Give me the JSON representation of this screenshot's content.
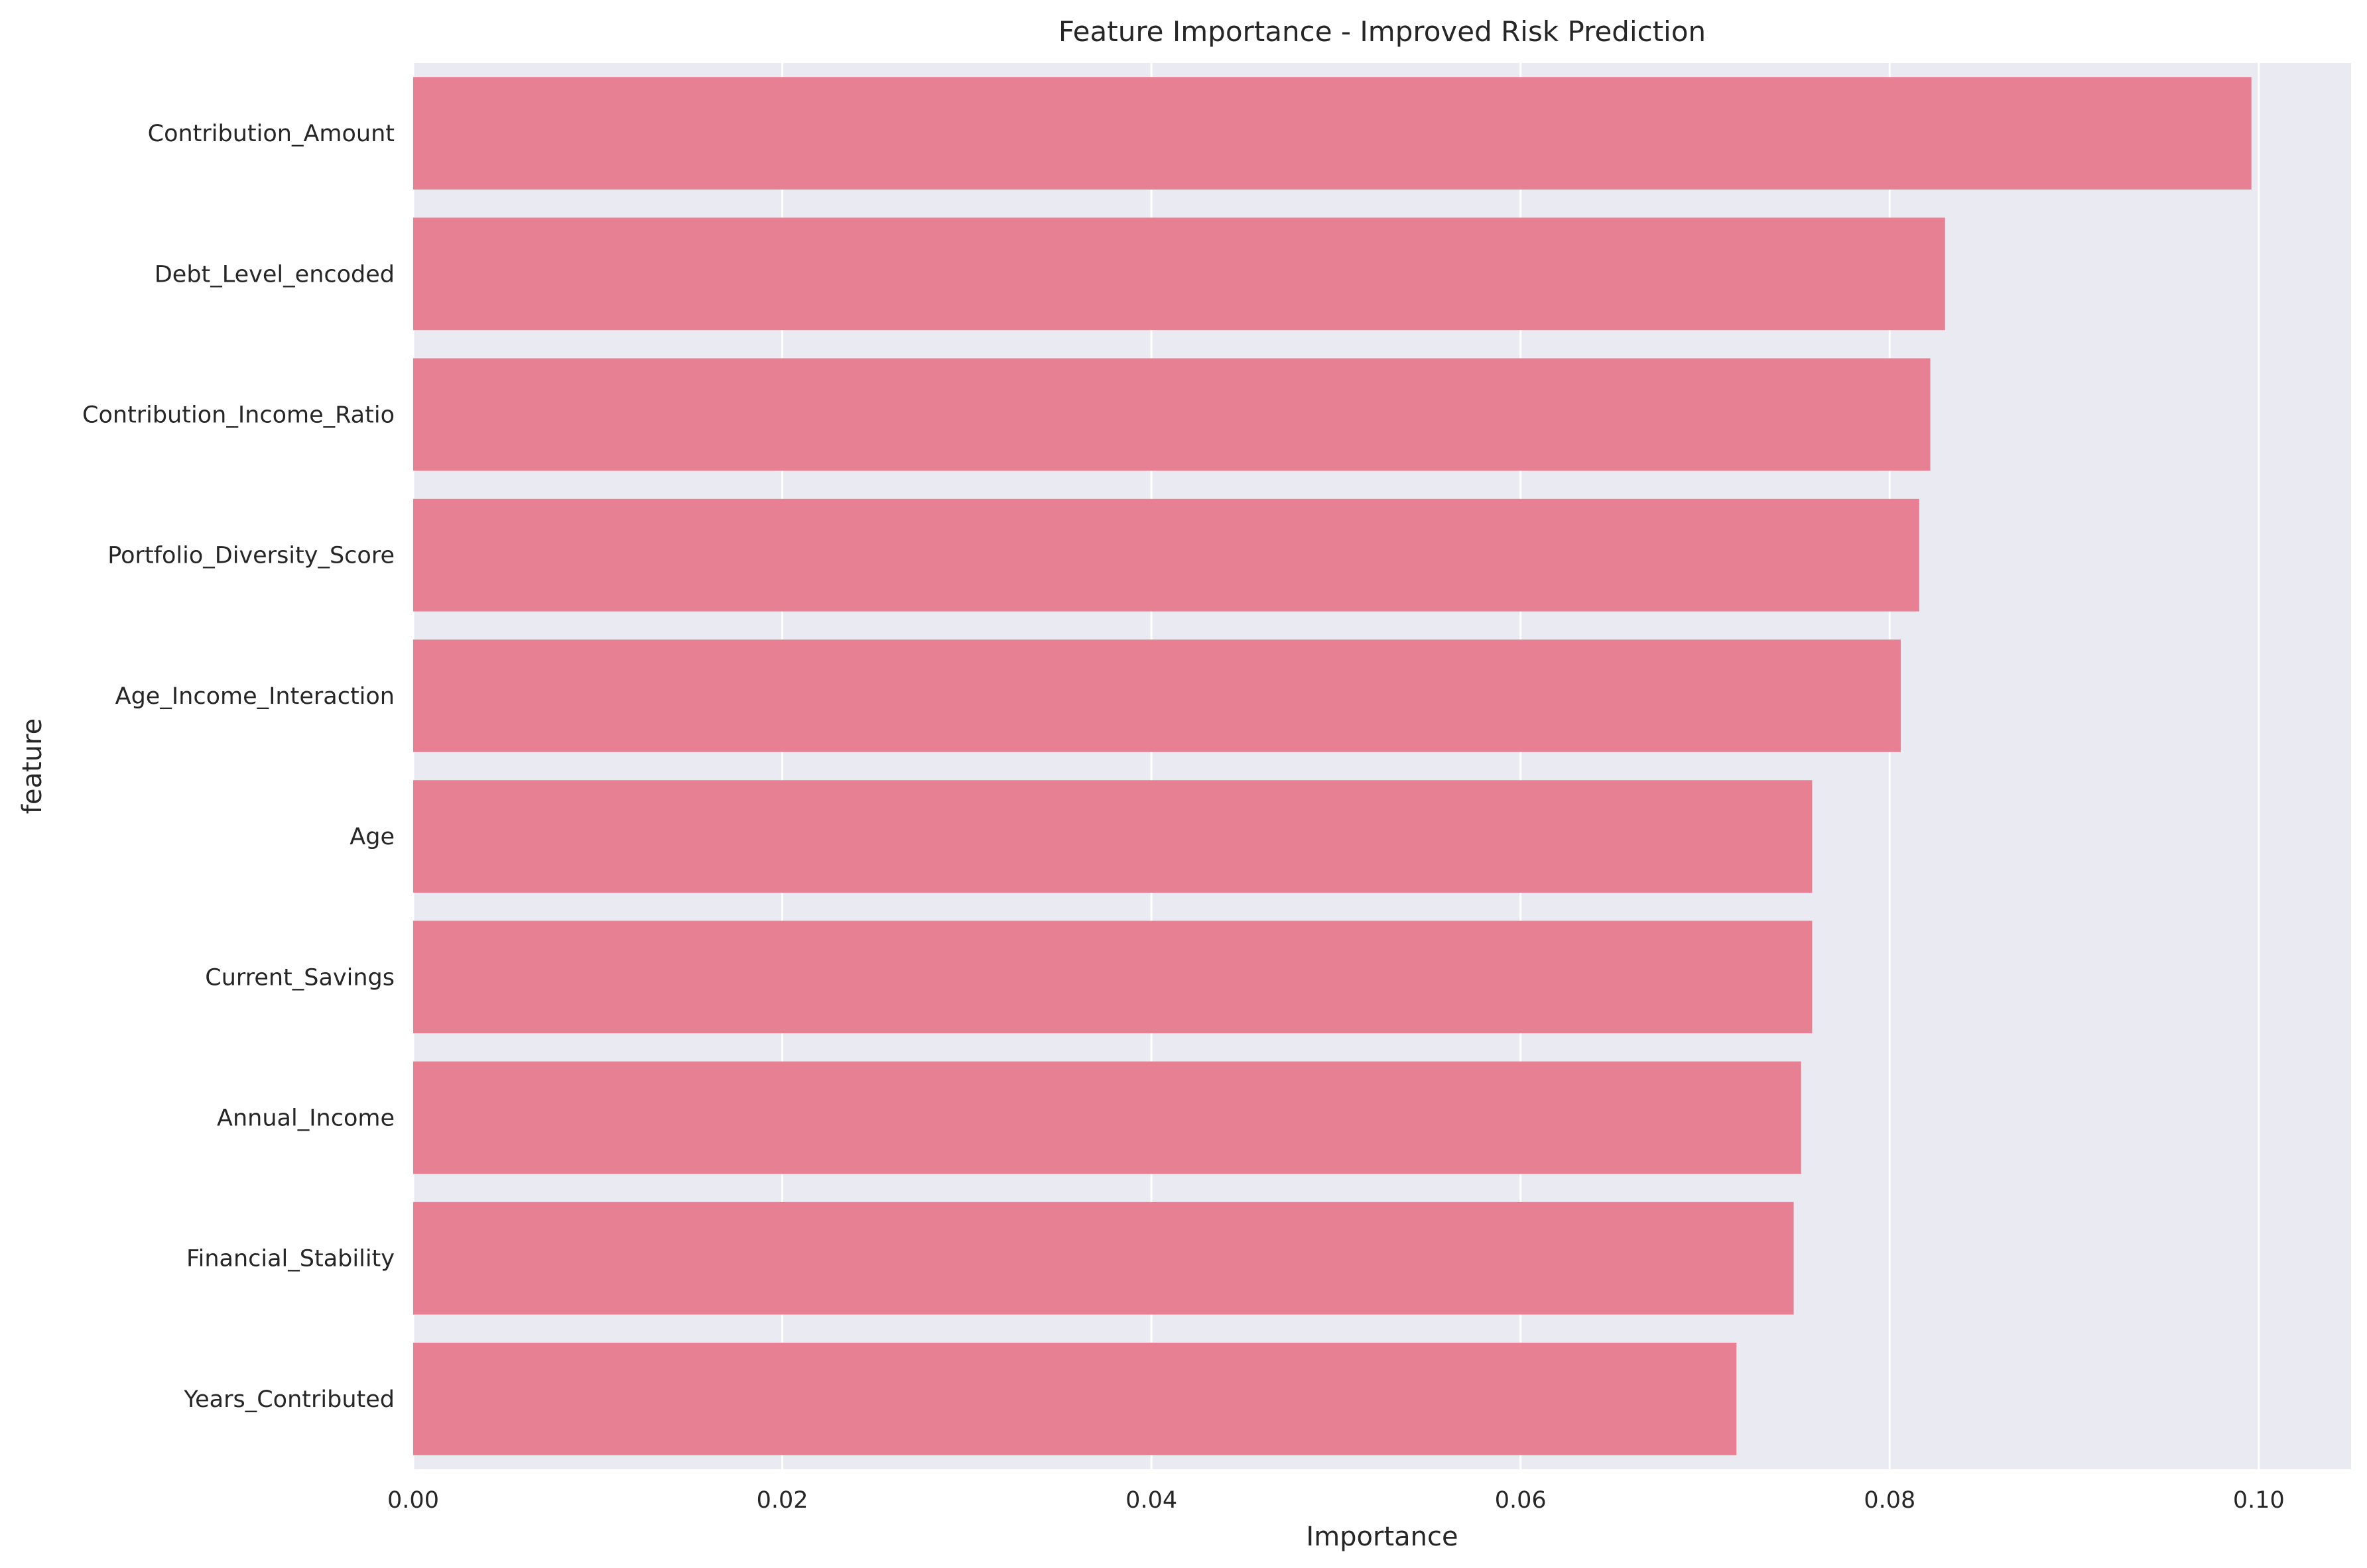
{
  "chart_data": {
    "type": "bar",
    "orientation": "horizontal",
    "title": "Feature Importance - Improved Risk Prediction",
    "xlabel": "Importance",
    "ylabel": "feature",
    "xlim": [
      0,
      0.105
    ],
    "x_ticks": [
      "0.00",
      "0.02",
      "0.04",
      "0.06",
      "0.08",
      "0.10"
    ],
    "x_tick_values": [
      0,
      0.02,
      0.04,
      0.06,
      0.08,
      0.1
    ],
    "grid": true,
    "bar_color": "#e78092",
    "background_color": "#eaeaf2",
    "categories": [
      "Contribution_Amount",
      "Debt_Level_encoded",
      "Contribution_Income_Ratio",
      "Portfolio_Diversity_Score",
      "Age_Income_Interaction",
      "Age",
      "Current_Savings",
      "Annual_Income",
      "Financial_Stability",
      "Years_Contributed"
    ],
    "values": [
      0.0996,
      0.083,
      0.0822,
      0.0816,
      0.0806,
      0.0758,
      0.0758,
      0.0752,
      0.0748,
      0.0717
    ]
  }
}
